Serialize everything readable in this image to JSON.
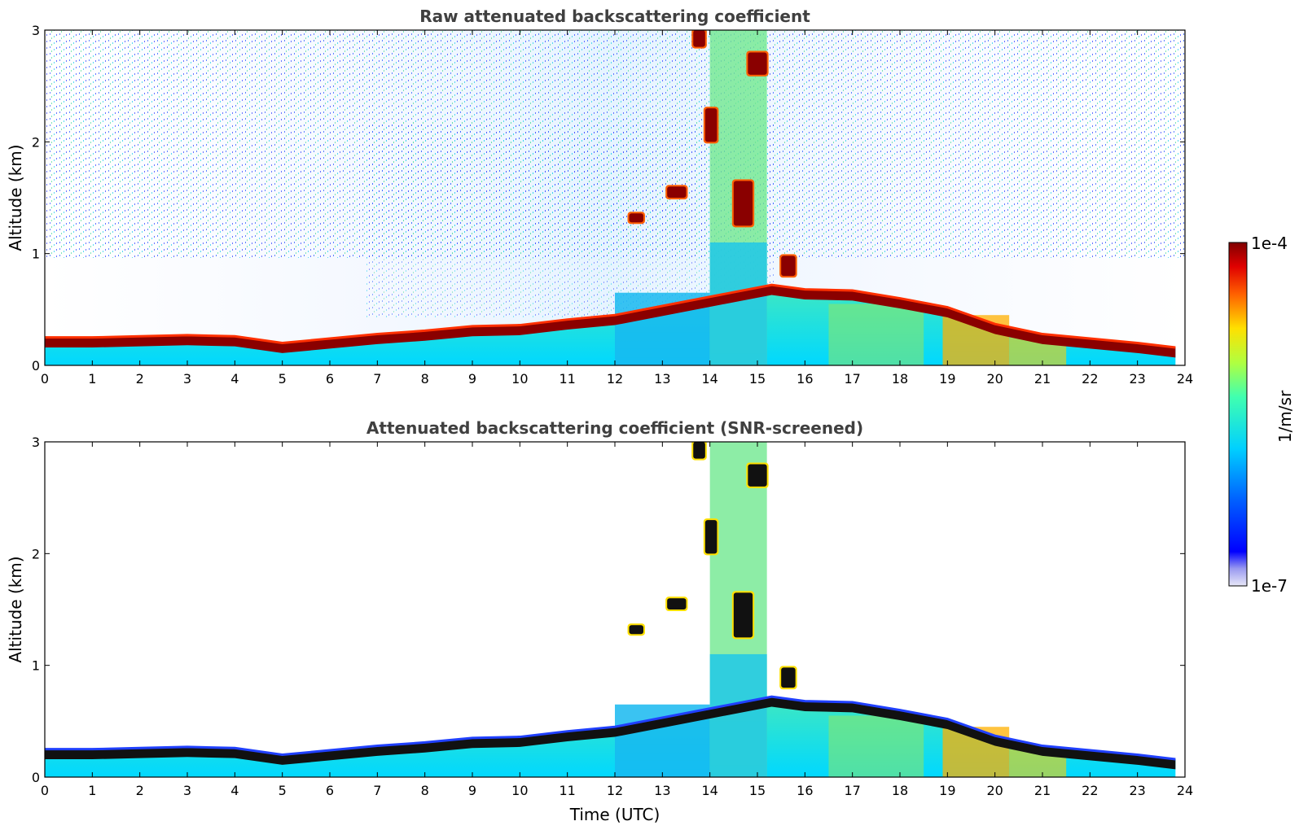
{
  "chart_data": [
    {
      "type": "heatmap",
      "title": "Raw attenuated backscattering coefficient",
      "xlabel": "",
      "ylabel": "Altitude (km)",
      "xlim": [
        0,
        24
      ],
      "ylim": [
        0,
        3
      ],
      "x_ticks": [
        "0",
        "1",
        "2",
        "3",
        "4",
        "5",
        "6",
        "7",
        "8",
        "9",
        "10",
        "11",
        "12",
        "13",
        "14",
        "15",
        "16",
        "17",
        "18",
        "19",
        "20",
        "21",
        "22",
        "23",
        "24"
      ],
      "y_ticks": [
        "0",
        "1",
        "2",
        "3"
      ],
      "layer_top_km": [
        [
          0,
          0.25
        ],
        [
          1,
          0.25
        ],
        [
          2,
          0.26
        ],
        [
          3,
          0.27
        ],
        [
          4,
          0.26
        ],
        [
          5,
          0.2
        ],
        [
          6,
          0.24
        ],
        [
          7,
          0.28
        ],
        [
          8,
          0.31
        ],
        [
          9,
          0.35
        ],
        [
          10,
          0.36
        ],
        [
          11,
          0.41
        ],
        [
          12,
          0.45
        ],
        [
          15.3,
          0.72
        ],
        [
          16,
          0.68
        ],
        [
          17,
          0.67
        ],
        [
          18,
          0.6
        ],
        [
          19,
          0.52
        ],
        [
          20,
          0.37
        ],
        [
          21,
          0.28
        ],
        [
          22,
          0.24
        ],
        [
          23,
          0.2
        ],
        [
          23.8,
          0.16
        ]
      ],
      "clouds": [
        {
          "x": [
            12.3,
            12.6
          ],
          "alt": [
            1.28,
            1.36
          ]
        },
        {
          "x": [
            13.1,
            13.5
          ],
          "alt": [
            1.5,
            1.6
          ]
        },
        {
          "x": [
            13.65,
            13.9
          ],
          "alt": [
            2.85,
            3.0
          ]
        },
        {
          "x": [
            13.9,
            14.15
          ],
          "alt": [
            2.0,
            2.3
          ]
        },
        {
          "x": [
            14.5,
            14.9
          ],
          "alt": [
            1.25,
            1.65
          ]
        },
        {
          "x": [
            14.8,
            15.2
          ],
          "alt": [
            2.6,
            2.8
          ]
        },
        {
          "x": [
            15.5,
            15.8
          ],
          "alt": [
            0.8,
            0.98
          ]
        }
      ]
    },
    {
      "type": "heatmap",
      "title": "Attenuated backscattering coefficient (SNR-screened)",
      "xlabel": "Time (UTC)",
      "ylabel": "Altitude (km)",
      "xlim": [
        0,
        24
      ],
      "ylim": [
        0,
        3
      ],
      "x_ticks": [
        "0",
        "1",
        "2",
        "3",
        "4",
        "5",
        "6",
        "7",
        "8",
        "9",
        "10",
        "11",
        "12",
        "13",
        "14",
        "15",
        "16",
        "17",
        "18",
        "19",
        "20",
        "21",
        "22",
        "23",
        "24"
      ],
      "y_ticks": [
        "0",
        "1",
        "2",
        "3"
      ]
    }
  ],
  "colorbar": {
    "label": "1/m/sr",
    "max_label": "1e-4",
    "min_label": "1e-7",
    "scale": "log",
    "colormap": "jet"
  }
}
